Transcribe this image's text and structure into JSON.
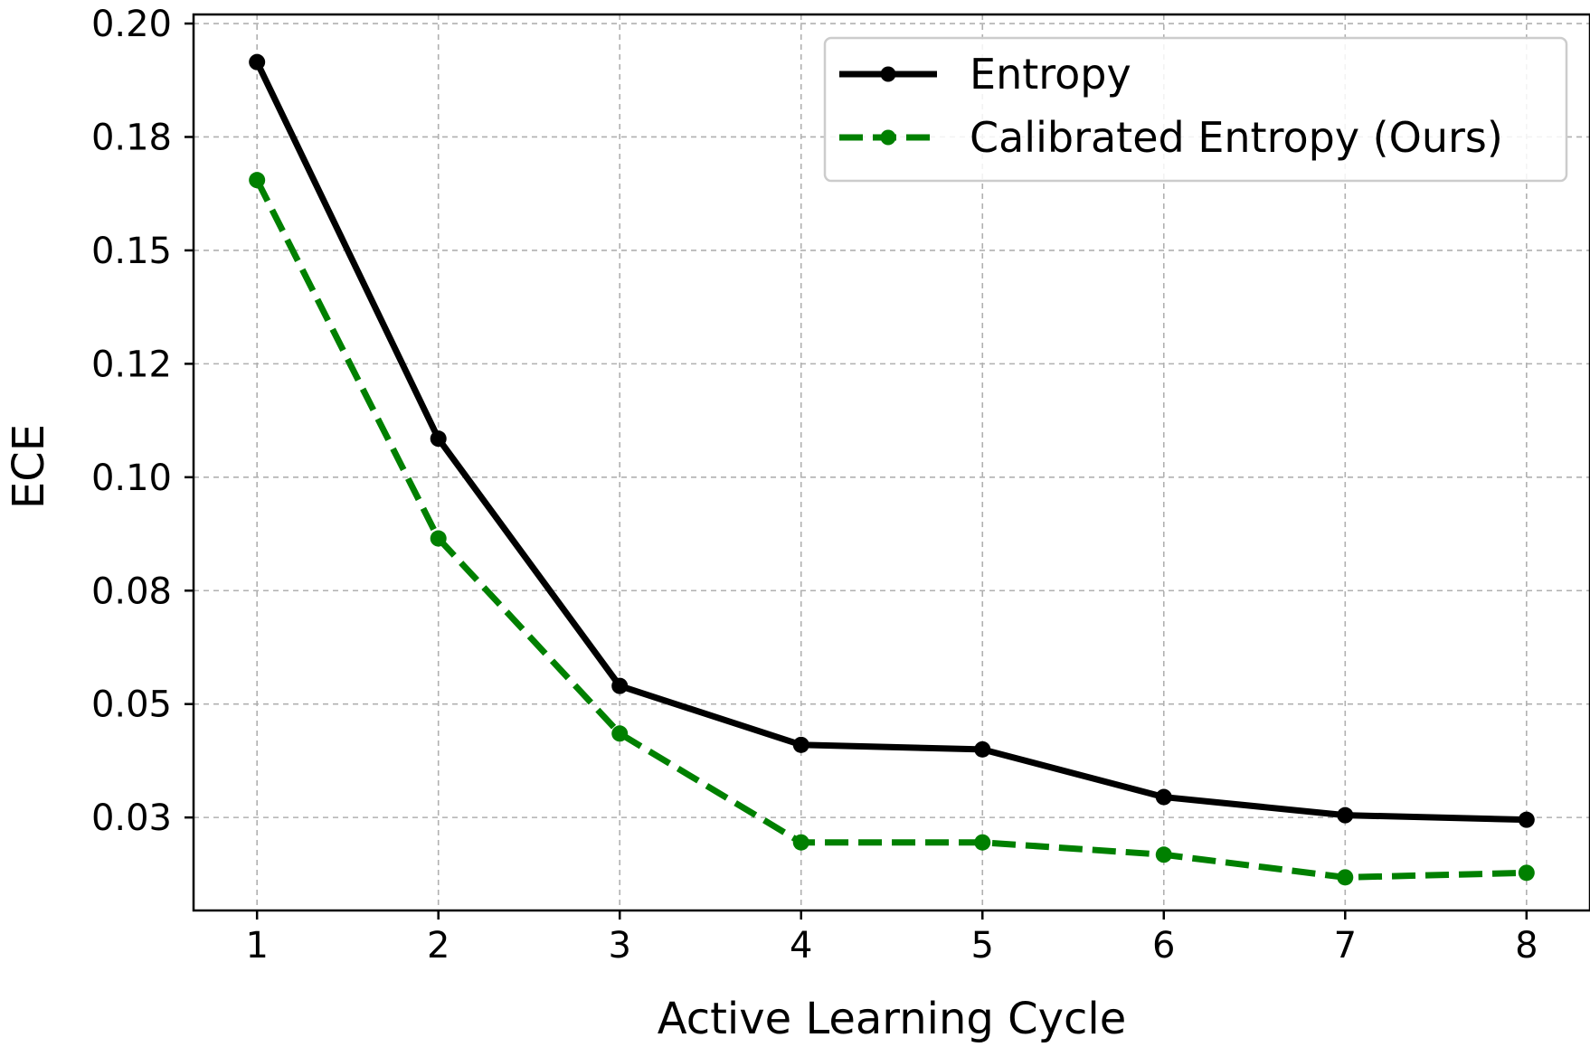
{
  "chart_data": {
    "type": "line",
    "title": "",
    "xlabel": "Active Learning Cycle",
    "ylabel": "ECE",
    "x": [
      1,
      2,
      3,
      4,
      5,
      6,
      7,
      8
    ],
    "xlim": [
      0.65,
      8.35
    ],
    "ylim": [
      0.0045,
      0.202
    ],
    "xticks": [
      1,
      2,
      3,
      4,
      5,
      6,
      7,
      8
    ],
    "yticks": [
      {
        "value": 0.025,
        "label": "0.03"
      },
      {
        "value": 0.05,
        "label": "0.05"
      },
      {
        "value": 0.075,
        "label": "0.08"
      },
      {
        "value": 0.1,
        "label": "0.10"
      },
      {
        "value": 0.125,
        "label": "0.12"
      },
      {
        "value": 0.15,
        "label": "0.15"
      },
      {
        "value": 0.175,
        "label": "0.18"
      },
      {
        "value": 0.2,
        "label": "0.20"
      }
    ],
    "grid": true,
    "legend_position": "top-right",
    "series": [
      {
        "name": "Entropy",
        "color": "#000000",
        "style": "solid",
        "values": [
          0.1915,
          0.1085,
          0.054,
          0.041,
          0.04,
          0.0295,
          0.0255,
          0.0245
        ]
      },
      {
        "name": "Calibrated Entropy (Ours)",
        "color": "#008000",
        "style": "dashed",
        "values": [
          0.1655,
          0.0865,
          0.0435,
          0.0195,
          0.0195,
          0.0168,
          0.0118,
          0.0128
        ]
      }
    ]
  }
}
